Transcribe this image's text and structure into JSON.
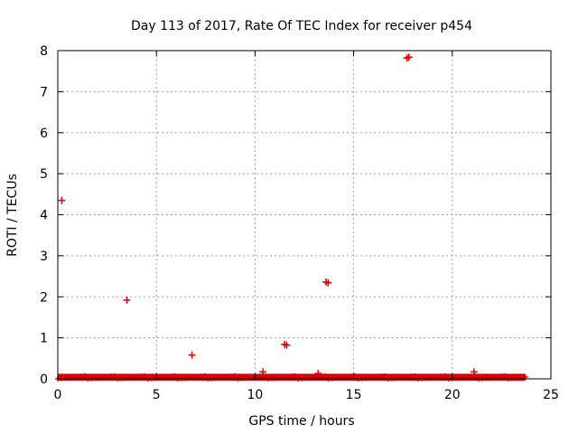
{
  "chart_data": {
    "type": "scatter",
    "title": "Day 113 of 2017, Rate Of TEC Index for receiver p454",
    "xlabel": "GPS time / hours",
    "ylabel": "ROTI / TECUs",
    "xlim": [
      0,
      25
    ],
    "ylim": [
      0,
      8
    ],
    "xticks": [
      "0",
      "5",
      "10",
      "15",
      "20",
      "25"
    ],
    "yticks": [
      "0",
      "1",
      "2",
      "3",
      "4",
      "5",
      "6",
      "7",
      "8"
    ],
    "grid": true,
    "marker": "+",
    "color": "#dd0000",
    "baseline_band": {
      "x_start": 0.0,
      "x_end": 23.7,
      "y_min": 0.0,
      "y_max": 0.08
    },
    "points": [
      {
        "x": 0.2,
        "y": 4.35
      },
      {
        "x": 3.5,
        "y": 1.92
      },
      {
        "x": 6.8,
        "y": 0.58
      },
      {
        "x": 10.4,
        "y": 0.17
      },
      {
        "x": 11.5,
        "y": 0.84
      },
      {
        "x": 11.6,
        "y": 0.82
      },
      {
        "x": 13.2,
        "y": 0.13
      },
      {
        "x": 13.6,
        "y": 2.36
      },
      {
        "x": 13.7,
        "y": 2.34
      },
      {
        "x": 17.7,
        "y": 7.82
      },
      {
        "x": 17.8,
        "y": 7.84
      },
      {
        "x": 21.1,
        "y": 0.17
      }
    ]
  }
}
